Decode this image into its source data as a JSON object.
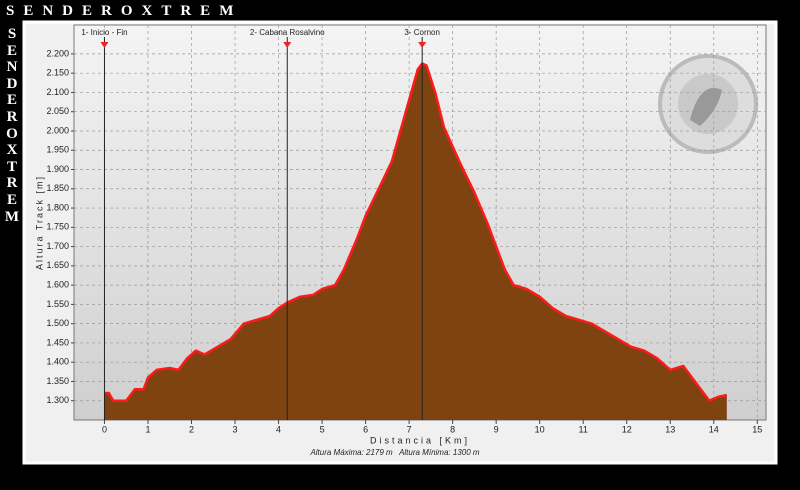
{
  "chart_data": {
    "type": "area",
    "title": "SENDEROXTREM",
    "x_label": "Distancia [Km]",
    "y_label": "Altura Track [m]",
    "footer": "Altura Máxima: 2179 m   Altura Mínima: 1300 m",
    "color": "#7f4312",
    "line_color": "#ff1a1a",
    "grid": true,
    "xlim": [
      -0.7,
      15.2
    ],
    "ylim": [
      1250,
      2275
    ],
    "xticks": [
      0,
      1,
      2,
      3,
      4,
      5,
      6,
      7,
      8,
      9,
      10,
      11,
      12,
      13,
      14,
      15
    ],
    "yticks": [
      {
        "value": 1300,
        "label": "1.300"
      },
      {
        "value": 1350,
        "label": "1.350"
      },
      {
        "value": 1400,
        "label": "1.400"
      },
      {
        "value": 1450,
        "label": "1.450"
      },
      {
        "value": 1500,
        "label": "1.500"
      },
      {
        "value": 1550,
        "label": "1.550"
      },
      {
        "value": 1600,
        "label": "1.600"
      },
      {
        "value": 1650,
        "label": "1.650"
      },
      {
        "value": 1700,
        "label": "1.700"
      },
      {
        "value": 1750,
        "label": "1.750"
      },
      {
        "value": 1800,
        "label": "1.800"
      },
      {
        "value": 1850,
        "label": "1.850"
      },
      {
        "value": 1900,
        "label": "1.900"
      },
      {
        "value": 1950,
        "label": "1.950"
      },
      {
        "value": 2000,
        "label": "2.000"
      },
      {
        "value": 2050,
        "label": "2.050"
      },
      {
        "value": 2100,
        "label": "2.100"
      },
      {
        "value": 2150,
        "label": "2.150"
      },
      {
        "value": 2200,
        "label": "2.200"
      }
    ],
    "waypoints": [
      {
        "label": "1- Inicio - Fin",
        "x": 0
      },
      {
        "label": "2- Cabana Rosalvino",
        "x": 4.2
      },
      {
        "label": "3- Cornon",
        "x": 7.3
      }
    ],
    "x": [
      0,
      0.1,
      0.2,
      0.5,
      0.7,
      0.9,
      1.0,
      1.2,
      1.5,
      1.7,
      1.9,
      2.1,
      2.3,
      2.6,
      2.9,
      3.2,
      3.5,
      3.8,
      4.0,
      4.2,
      4.5,
      4.8,
      5.0,
      5.3,
      5.5,
      5.8,
      6.0,
      6.3,
      6.6,
      6.8,
      7.0,
      7.2,
      7.3,
      7.4,
      7.6,
      7.8,
      8.0,
      8.2,
      8.5,
      8.8,
      9.0,
      9.2,
      9.4,
      9.7,
      10.0,
      10.3,
      10.6,
      10.9,
      11.2,
      11.5,
      11.8,
      12.1,
      12.4,
      12.7,
      13.0,
      13.3,
      13.5,
      13.7,
      13.9,
      14.1,
      14.3
    ],
    "values": [
      1320,
      1320,
      1300,
      1300,
      1330,
      1330,
      1360,
      1380,
      1385,
      1380,
      1410,
      1430,
      1420,
      1440,
      1460,
      1500,
      1510,
      1520,
      1540,
      1555,
      1570,
      1575,
      1590,
      1600,
      1640,
      1720,
      1780,
      1850,
      1920,
      2000,
      2080,
      2160,
      2175,
      2170,
      2100,
      2010,
      1960,
      1910,
      1840,
      1760,
      1700,
      1640,
      1600,
      1590,
      1570,
      1540,
      1520,
      1510,
      1500,
      1480,
      1460,
      1440,
      1430,
      1410,
      1380,
      1390,
      1360,
      1330,
      1300,
      1310,
      1315
    ]
  }
}
